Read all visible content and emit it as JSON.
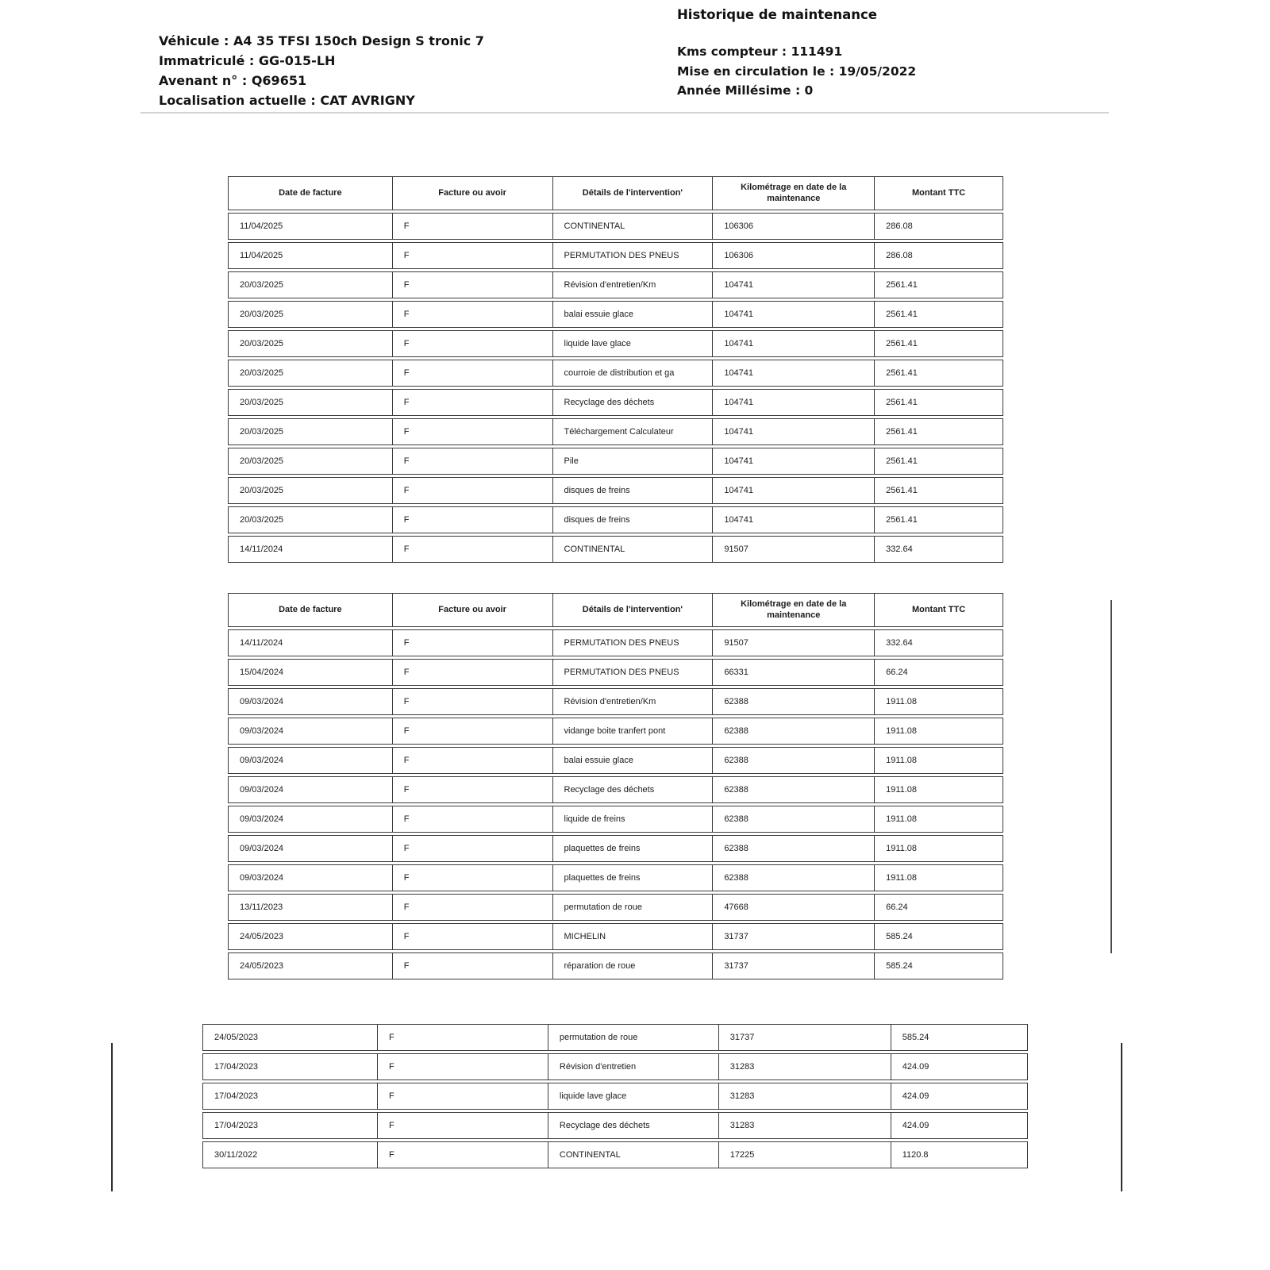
{
  "header": {
    "title": "Historique de maintenance",
    "left": [
      "Véhicule : A4 35 TFSI 150ch Design S tronic 7",
      "Immatriculé : GG-015-LH",
      "Avenant n° : Q69651",
      "Localisation actuelle : CAT AVRIGNY"
    ],
    "right": [
      "Kms compteur : 111491",
      "Mise en circulation le : 19/05/2022",
      "Année Millésime : 0"
    ]
  },
  "colors": {
    "text": "#1a1a1a",
    "table_border": "#3b3b3b",
    "header_rule": "#d2d2d2"
  },
  "tables": {
    "columns": [
      "Date de facture",
      "Facture ou avoir",
      "Détails de l'intervention'",
      "Kilométrage en date de la maintenance",
      "Montant TTC"
    ],
    "table1": {
      "show_header": true,
      "rows": [
        [
          "11/04/2025",
          "F",
          "CONTINENTAL",
          "106306",
          "286.08"
        ],
        [
          "11/04/2025",
          "F",
          "PERMUTATION DES PNEUS",
          "106306",
          "286.08"
        ],
        [
          "20/03/2025",
          "F",
          "Révision d'entretien/Km",
          "104741",
          "2561.41"
        ],
        [
          "20/03/2025",
          "F",
          "balai essuie glace",
          "104741",
          "2561.41"
        ],
        [
          "20/03/2025",
          "F",
          "liquide lave glace",
          "104741",
          "2561.41"
        ],
        [
          "20/03/2025",
          "F",
          "courroie de distribution et ga",
          "104741",
          "2561.41"
        ],
        [
          "20/03/2025",
          "F",
          "Recyclage des déchets",
          "104741",
          "2561.41"
        ],
        [
          "20/03/2025",
          "F",
          "Téléchargement Calculateur",
          "104741",
          "2561.41"
        ],
        [
          "20/03/2025",
          "F",
          "Pile",
          "104741",
          "2561.41"
        ],
        [
          "20/03/2025",
          "F",
          "disques de freins",
          "104741",
          "2561.41"
        ],
        [
          "20/03/2025",
          "F",
          "disques de freins",
          "104741",
          "2561.41"
        ],
        [
          "14/11/2024",
          "F",
          "CONTINENTAL",
          "91507",
          "332.64"
        ]
      ]
    },
    "table2": {
      "show_header": true,
      "rows": [
        [
          "14/11/2024",
          "F",
          "PERMUTATION DES PNEUS",
          "91507",
          "332.64"
        ],
        [
          "15/04/2024",
          "F",
          "PERMUTATION DES PNEUS",
          "66331",
          "66.24"
        ],
        [
          "09/03/2024",
          "F",
          "Révision d'entretien/Km",
          "62388",
          "1911.08"
        ],
        [
          "09/03/2024",
          "F",
          "vidange boite tranfert pont",
          "62388",
          "1911.08"
        ],
        [
          "09/03/2024",
          "F",
          "balai essuie glace",
          "62388",
          "1911.08"
        ],
        [
          "09/03/2024",
          "F",
          "Recyclage des déchets",
          "62388",
          "1911.08"
        ],
        [
          "09/03/2024",
          "F",
          "liquide de freins",
          "62388",
          "1911.08"
        ],
        [
          "09/03/2024",
          "F",
          "plaquettes de freins",
          "62388",
          "1911.08"
        ],
        [
          "09/03/2024",
          "F",
          "plaquettes de freins",
          "62388",
          "1911.08"
        ],
        [
          "13/11/2023",
          "F",
          "permutation de roue",
          "47668",
          "66.24"
        ],
        [
          "24/05/2023",
          "F",
          "MICHELIN",
          "31737",
          "585.24"
        ],
        [
          "24/05/2023",
          "F",
          "réparation de roue",
          "31737",
          "585.24"
        ]
      ]
    },
    "table3": {
      "show_header": false,
      "rows": [
        [
          "24/05/2023",
          "F",
          "permutation de roue",
          "31737",
          "585.24"
        ],
        [
          "17/04/2023",
          "F",
          "Révision d'entretien",
          "31283",
          "424.09"
        ],
        [
          "17/04/2023",
          "F",
          "liquide lave glace",
          "31283",
          "424.09"
        ],
        [
          "17/04/2023",
          "F",
          "Recyclage des déchets",
          "31283",
          "424.09"
        ],
        [
          "30/11/2022",
          "F",
          "CONTINENTAL",
          "17225",
          "1120.8"
        ]
      ]
    }
  }
}
